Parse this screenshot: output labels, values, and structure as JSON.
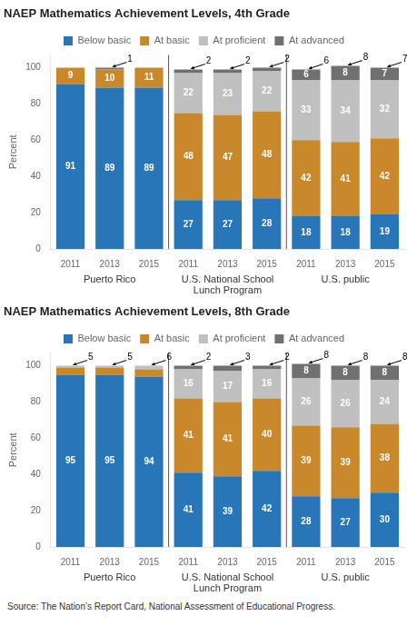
{
  "chart_data": [
    {
      "type": "bar",
      "title": "NAEP Mathematics Achievement Levels, 4th Grade",
      "y_label": "Percent",
      "categories": [
        "2011",
        "2013",
        "2015",
        "2011",
        "2013",
        "2015",
        "2011",
        "2013",
        "2015"
      ],
      "groups": [
        "Puerto Rico",
        "U.S. National School\nLunch Program",
        "U.S. public"
      ],
      "stacked": true,
      "data_labels": true,
      "grid": false,
      "legend": "top",
      "ylim": [
        0,
        107
      ],
      "yticks": [
        0,
        20,
        40,
        60,
        80,
        100
      ],
      "series": [
        {
          "name": "Below basic",
          "color": "#2876b8",
          "values": [
            91,
            89,
            89,
            27,
            27,
            28,
            18,
            18,
            19
          ],
          "value_labels": [
            "91",
            "89",
            "89",
            "27",
            "27",
            "28",
            "18",
            "18",
            "19"
          ]
        },
        {
          "name": "At basic",
          "color": "#c9882a",
          "values": [
            9,
            10,
            11,
            48,
            47,
            48,
            42,
            41,
            42
          ],
          "value_labels": [
            "9",
            "10",
            "11",
            "48",
            "47",
            "48",
            "42",
            "41",
            "42"
          ]
        },
        {
          "name": "At proficient",
          "color": "#c0c0c0",
          "values": [
            0,
            0,
            0,
            22,
            23,
            22,
            33,
            34,
            32
          ],
          "value_labels": [
            null,
            null,
            null,
            "22",
            "23",
            "22",
            "33",
            "34",
            "32"
          ]
        },
        {
          "name": "At advanced",
          "color": "#707070",
          "values": [
            0,
            1,
            0,
            2,
            2,
            2,
            6,
            8,
            7
          ],
          "value_labels": [
            null,
            null,
            null,
            null,
            null,
            null,
            "6",
            "8",
            "7"
          ]
        }
      ],
      "annotations": [
        null,
        1,
        null,
        2,
        2,
        2,
        6,
        8,
        7
      ]
    },
    {
      "type": "bar",
      "title": "NAEP Mathematics Achievement Levels, 8th Grade",
      "y_label": "Percent",
      "categories": [
        "2011",
        "2013",
        "2015",
        "2011",
        "2013",
        "2015",
        "2011",
        "2013",
        "2015"
      ],
      "groups": [
        "Puerto Rico",
        "U.S. National School\nLunch Program",
        "U.S. public"
      ],
      "stacked": true,
      "data_labels": true,
      "grid": false,
      "legend": "top",
      "ylim": [
        0,
        107
      ],
      "yticks": [
        0,
        20,
        40,
        60,
        80,
        100
      ],
      "series": [
        {
          "name": "Below basic",
          "color": "#2876b8",
          "values": [
            95,
            95,
            94,
            41,
            39,
            42,
            28,
            27,
            30
          ],
          "value_labels": [
            "95",
            "95",
            "94",
            "41",
            "39",
            "42",
            "28",
            "27",
            "30"
          ]
        },
        {
          "name": "At basic",
          "color": "#c9882a",
          "values": [
            4,
            4,
            4,
            41,
            41,
            40,
            39,
            39,
            38
          ],
          "value_labels": [
            null,
            null,
            null,
            "41",
            "41",
            "40",
            "39",
            "39",
            "38"
          ]
        },
        {
          "name": "At proficient",
          "color": "#c0c0c0",
          "values": [
            1,
            1,
            2,
            16,
            17,
            16,
            26,
            26,
            24
          ],
          "value_labels": [
            null,
            null,
            null,
            "16",
            "17",
            "16",
            "26",
            "26",
            "24"
          ]
        },
        {
          "name": "At advanced",
          "color": "#707070",
          "values": [
            0,
            0,
            0,
            2,
            3,
            2,
            8,
            8,
            8
          ],
          "value_labels": [
            null,
            null,
            null,
            null,
            null,
            null,
            "8",
            "8",
            "8"
          ]
        }
      ],
      "annotations": [
        5,
        5,
        6,
        2,
        3,
        2,
        8,
        8,
        8
      ]
    }
  ],
  "source": "Source: The Nation’s Report Card, National Assessment of Educational Progress."
}
